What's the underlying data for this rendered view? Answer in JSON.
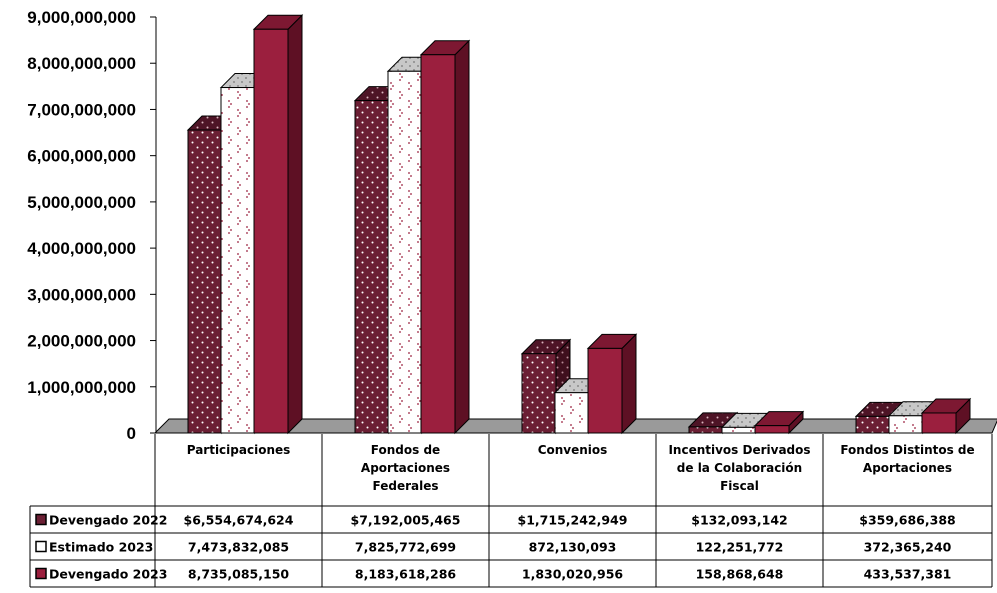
{
  "chart_data": {
    "type": "bar",
    "title": "",
    "xlabel": "",
    "ylabel": "",
    "ylim": [
      0,
      9000000000
    ],
    "yticks": [
      0,
      1000000000,
      2000000000,
      3000000000,
      4000000000,
      5000000000,
      6000000000,
      7000000000,
      8000000000,
      9000000000
    ],
    "ytick_labels": [
      "0",
      "1,000,000,000",
      "2,000,000,000",
      "3,000,000,000",
      "4,000,000,000",
      "5,000,000,000",
      "6,000,000,000",
      "7,000,000,000",
      "8,000,000,000",
      "9,000,000,000"
    ],
    "categories": [
      [
        "Participaciones"
      ],
      [
        "Fondos de",
        "Aportaciones",
        "Federales"
      ],
      [
        "Convenios"
      ],
      [
        "Incentivos Derivados",
        "de la Colaboración",
        "Fiscal"
      ],
      [
        "Fondos Distintos de",
        "Aportaciones"
      ]
    ],
    "series": [
      {
        "name": "Devengado 2022",
        "values": [
          6554674624,
          7192005465,
          1715242949,
          132093142,
          359686388
        ],
        "labels": [
          "$6,554,674,624",
          "$7,192,005,465",
          "$1,715,242,949",
          "$132,093,142",
          "$359,686,388"
        ],
        "color": "#6b1f34",
        "pattern": "dots"
      },
      {
        "name": "Estimado 2023",
        "values": [
          7473832085,
          7825772699,
          872130093,
          122251772,
          372365240
        ],
        "labels": [
          "7,473,832,085",
          "7,825,772,699",
          "872,130,093",
          "122,251,772",
          "372,365,240"
        ],
        "color": "#ffffff",
        "pattern": "zigzag"
      },
      {
        "name": "Devengado 2023",
        "values": [
          8735085150,
          8183618286,
          1830020956,
          158868648,
          433537381
        ],
        "labels": [
          "8,735,085,150",
          "8,183,618,286",
          "1,830,020,956",
          "158,868,648",
          "433,537,381"
        ],
        "color": "#9b1f3e",
        "pattern": "solid"
      }
    ],
    "legend": "table-left",
    "grid": false,
    "floor_color": "#9a9a9a"
  }
}
